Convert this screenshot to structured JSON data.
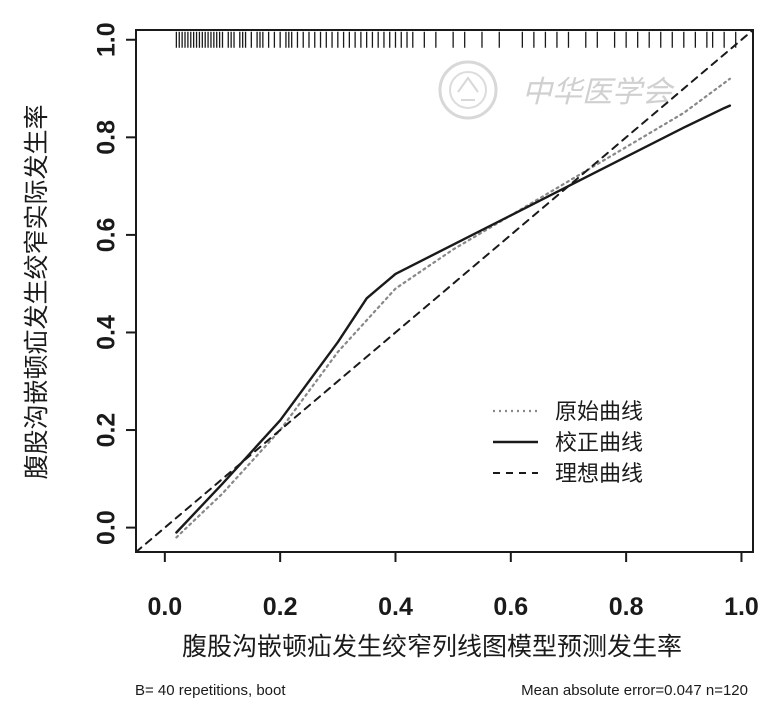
{
  "chart_data": {
    "type": "line",
    "title": "",
    "xlabel": "腹股沟嵌顿疝发生绞窄列线图模型预测发生率",
    "ylabel": "腹股沟嵌顿疝发生绞窄实际发生率",
    "xlim": [
      -0.05,
      1.02
    ],
    "ylim": [
      -0.05,
      1.02
    ],
    "x_ticks": [
      "0.0",
      "0.2",
      "0.4",
      "0.6",
      "0.8",
      "1.0"
    ],
    "y_ticks": [
      "0.0",
      "0.2",
      "0.4",
      "0.6",
      "0.8",
      "1.0"
    ],
    "grid": false,
    "legend_position": "bottom-right",
    "series": [
      {
        "name": "原始曲线",
        "style": "dotted",
        "color": "#888888",
        "x": [
          0.02,
          0.1,
          0.2,
          0.3,
          0.4,
          0.5,
          0.6,
          0.7,
          0.8,
          0.9,
          0.98
        ],
        "y": [
          -0.02,
          0.07,
          0.2,
          0.36,
          0.49,
          0.57,
          0.64,
          0.71,
          0.78,
          0.85,
          0.92
        ]
      },
      {
        "name": "校正曲线",
        "style": "solid",
        "color": "#1a1a1a",
        "x": [
          0.02,
          0.1,
          0.2,
          0.3,
          0.35,
          0.4,
          0.45,
          0.5,
          0.6,
          0.7,
          0.8,
          0.9,
          0.97,
          0.98
        ],
        "y": [
          -0.01,
          0.09,
          0.22,
          0.38,
          0.47,
          0.52,
          0.55,
          0.58,
          0.64,
          0.7,
          0.76,
          0.82,
          0.86,
          0.865
        ]
      },
      {
        "name": "理想曲线",
        "style": "dashed",
        "color": "#1a1a1a",
        "x": [
          -0.05,
          1.02
        ],
        "y": [
          -0.05,
          1.02
        ]
      }
    ],
    "rug_x": [
      0.02,
      0.025,
      0.03,
      0.035,
      0.04,
      0.045,
      0.05,
      0.055,
      0.06,
      0.065,
      0.07,
      0.075,
      0.08,
      0.085,
      0.09,
      0.095,
      0.1,
      0.11,
      0.115,
      0.12,
      0.13,
      0.135,
      0.14,
      0.15,
      0.16,
      0.165,
      0.17,
      0.18,
      0.19,
      0.2,
      0.21,
      0.215,
      0.22,
      0.23,
      0.24,
      0.25,
      0.26,
      0.27,
      0.28,
      0.29,
      0.3,
      0.31,
      0.32,
      0.33,
      0.34,
      0.35,
      0.36,
      0.37,
      0.38,
      0.39,
      0.4,
      0.41,
      0.42,
      0.43,
      0.45,
      0.47,
      0.5,
      0.52,
      0.55,
      0.58,
      0.62,
      0.64,
      0.66,
      0.68,
      0.7,
      0.73,
      0.75,
      0.78,
      0.8,
      0.82,
      0.84,
      0.86,
      0.88,
      0.9,
      0.92,
      0.94,
      0.95,
      0.97,
      0.99
    ],
    "rug_y": 1.0
  },
  "footer": {
    "left": "B= 40 repetitions, boot",
    "right": "Mean absolute error=0.047 n=120"
  },
  "watermark": {
    "text": "中华医学会",
    "color": "#d0d0d0"
  }
}
